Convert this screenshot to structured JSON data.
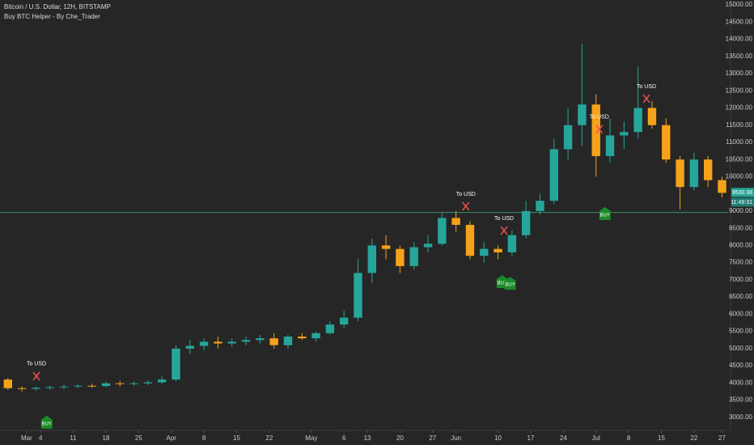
{
  "chart_data": {
    "type": "candlestick",
    "title": "Bitcoin / U.S. Dollar, 12H, BITSTAMP",
    "subtitle": "Buy BTC Helper - By Che_Trader",
    "up_color": "#26a69a",
    "down_color": "#f7a21b",
    "x": [
      -4,
      -1,
      2,
      5,
      8,
      11,
      14,
      17,
      20,
      23,
      26,
      29,
      32,
      35,
      38,
      41,
      44,
      47,
      50,
      53,
      56,
      59,
      62,
      65,
      68,
      71,
      74,
      77,
      80,
      83,
      86,
      89,
      92,
      95,
      98,
      101,
      104,
      107,
      110,
      113,
      116,
      119,
      122,
      125,
      128,
      131,
      134,
      137,
      140,
      143,
      146,
      149
    ],
    "open": [
      4100,
      3850,
      3830,
      3860,
      3880,
      3900,
      3920,
      3910,
      3990,
      3980,
      3990,
      4020,
      4100,
      5000,
      5080,
      5200,
      5150,
      5200,
      5250,
      5300,
      5100,
      5350,
      5300,
      5450,
      5700,
      5900,
      7200,
      8000,
      7900,
      7400,
      7950,
      8050,
      8800,
      8600,
      7700,
      7900,
      7800,
      8300,
      9000,
      9300,
      10800,
      11500,
      12100,
      10600,
      11200,
      11300,
      12000,
      11500,
      10500,
      9700,
      10500,
      9900
    ],
    "high": [
      4150,
      3900,
      3900,
      3920,
      3950,
      3960,
      3980,
      4050,
      4060,
      4050,
      4080,
      4200,
      5100,
      5250,
      5300,
      5350,
      5300,
      5350,
      5400,
      5450,
      5400,
      5450,
      5500,
      5800,
      6100,
      7600,
      8200,
      8300,
      8000,
      8100,
      8300,
      8950,
      9000,
      8700,
      8100,
      8000,
      8450,
      9300,
      9500,
      11100,
      12000,
      13850,
      12400,
      11700,
      11600,
      13200,
      12200,
      11700,
      10600,
      10700,
      10600,
      10000
    ],
    "low": [
      3800,
      3750,
      3780,
      3800,
      3820,
      3850,
      3860,
      3880,
      3900,
      3920,
      3940,
      3980,
      4050,
      4850,
      4950,
      5000,
      5050,
      5100,
      5150,
      5000,
      5000,
      5250,
      5200,
      5400,
      5600,
      5800,
      6900,
      7600,
      7200,
      7300,
      7800,
      8000,
      8400,
      7600,
      7500,
      7600,
      7700,
      8200,
      8900,
      9200,
      10500,
      10900,
      10000,
      10400,
      10800,
      11100,
      11400,
      10400,
      9050,
      9600,
      9700,
      9400
    ],
    "close": [
      3850,
      3830,
      3860,
      3880,
      3900,
      3920,
      3910,
      3990,
      3980,
      3990,
      4020,
      4100,
      5000,
      5080,
      5200,
      5150,
      5200,
      5250,
      5300,
      5100,
      5350,
      5300,
      5450,
      5700,
      5900,
      7200,
      8000,
      7900,
      7400,
      7950,
      8050,
      8800,
      8600,
      7700,
      7900,
      7800,
      8300,
      9000,
      9300,
      10800,
      11500,
      12100,
      10600,
      11200,
      11300,
      12000,
      11500,
      10500,
      9700,
      10500,
      9900,
      9530
    ],
    "xlim": [
      -5.7,
      150.3
    ],
    "ylim": [
      2620,
      15140
    ],
    "xticks": [
      {
        "value": 0,
        "label": "Mar"
      },
      {
        "value": 3,
        "label": "4"
      },
      {
        "value": 10,
        "label": "11"
      },
      {
        "value": 17,
        "label": "18"
      },
      {
        "value": 24,
        "label": "25"
      },
      {
        "value": 31,
        "label": "Apr"
      },
      {
        "value": 38,
        "label": "8"
      },
      {
        "value": 45,
        "label": "15"
      },
      {
        "value": 52,
        "label": "22"
      },
      {
        "value": 61,
        "label": "May"
      },
      {
        "value": 68,
        "label": "6"
      },
      {
        "value": 73,
        "label": "13"
      },
      {
        "value": 80,
        "label": "20"
      },
      {
        "value": 87,
        "label": "27"
      },
      {
        "value": 92,
        "label": "Jun"
      },
      {
        "value": 101,
        "label": "10"
      },
      {
        "value": 108,
        "label": "17"
      },
      {
        "value": 115,
        "label": "24"
      },
      {
        "value": 122,
        "label": "Jul"
      },
      {
        "value": 129,
        "label": "8"
      },
      {
        "value": 136,
        "label": "15"
      },
      {
        "value": 143,
        "label": "22"
      },
      {
        "value": 149,
        "label": "27"
      }
    ],
    "yticks": [
      {
        "value": 3000,
        "label": "3000.00"
      },
      {
        "value": 3500,
        "label": "3500.00"
      },
      {
        "value": 4000,
        "label": "4000.00"
      },
      {
        "value": 4500,
        "label": "4500.00"
      },
      {
        "value": 5000,
        "label": "5000.00"
      },
      {
        "value": 5500,
        "label": "5500.00"
      },
      {
        "value": 6000,
        "label": "6000.00"
      },
      {
        "value": 6500,
        "label": "6500.00"
      },
      {
        "value": 7000,
        "label": "7000.00"
      },
      {
        "value": 7500,
        "label": "7500.00"
      },
      {
        "value": 8000,
        "label": "8000.00"
      },
      {
        "value": 8500,
        "label": "8500.00"
      },
      {
        "value": 9000,
        "label": "9000.00"
      },
      {
        "value": 10000,
        "label": "10000.00"
      },
      {
        "value": 10500,
        "label": "10500.00"
      },
      {
        "value": 11000,
        "label": "11000.00"
      },
      {
        "value": 11500,
        "label": "11500.00"
      },
      {
        "value": 12000,
        "label": "12000.00"
      },
      {
        "value": 12500,
        "label": "12500.00"
      },
      {
        "value": 13000,
        "label": "13000.00"
      },
      {
        "value": 13500,
        "label": "13500.00"
      },
      {
        "value": 14000,
        "label": "14000.00"
      },
      {
        "value": 14500,
        "label": "14500.00"
      },
      {
        "value": 15000,
        "label": "15000.00"
      }
    ],
    "level_line": {
      "value": 8960,
      "color": "#3a8f6a"
    },
    "last_price": {
      "value": 9530.38,
      "label": "9530.38",
      "countdown": "11:49:31"
    },
    "sell_signals": [
      {
        "x": 2.1,
        "y": 4200,
        "label": "To USD"
      },
      {
        "x": 94.1,
        "y": 9140,
        "label": "To USD"
      },
      {
        "x": 102.3,
        "y": 8435,
        "label": "To USD"
      },
      {
        "x": 122.7,
        "y": 11380,
        "label": "To USD"
      },
      {
        "x": 132.8,
        "y": 12270,
        "label": "To USD"
      }
    ],
    "buy_signals": [
      {
        "x": 4.3,
        "y": 2860,
        "label": "BUY"
      },
      {
        "x": 101.9,
        "y": 6950,
        "label": "BUY"
      },
      {
        "x": 103.6,
        "y": 6900,
        "label": "BUY"
      },
      {
        "x": 123.9,
        "y": 8930,
        "label": "BUY"
      }
    ]
  }
}
